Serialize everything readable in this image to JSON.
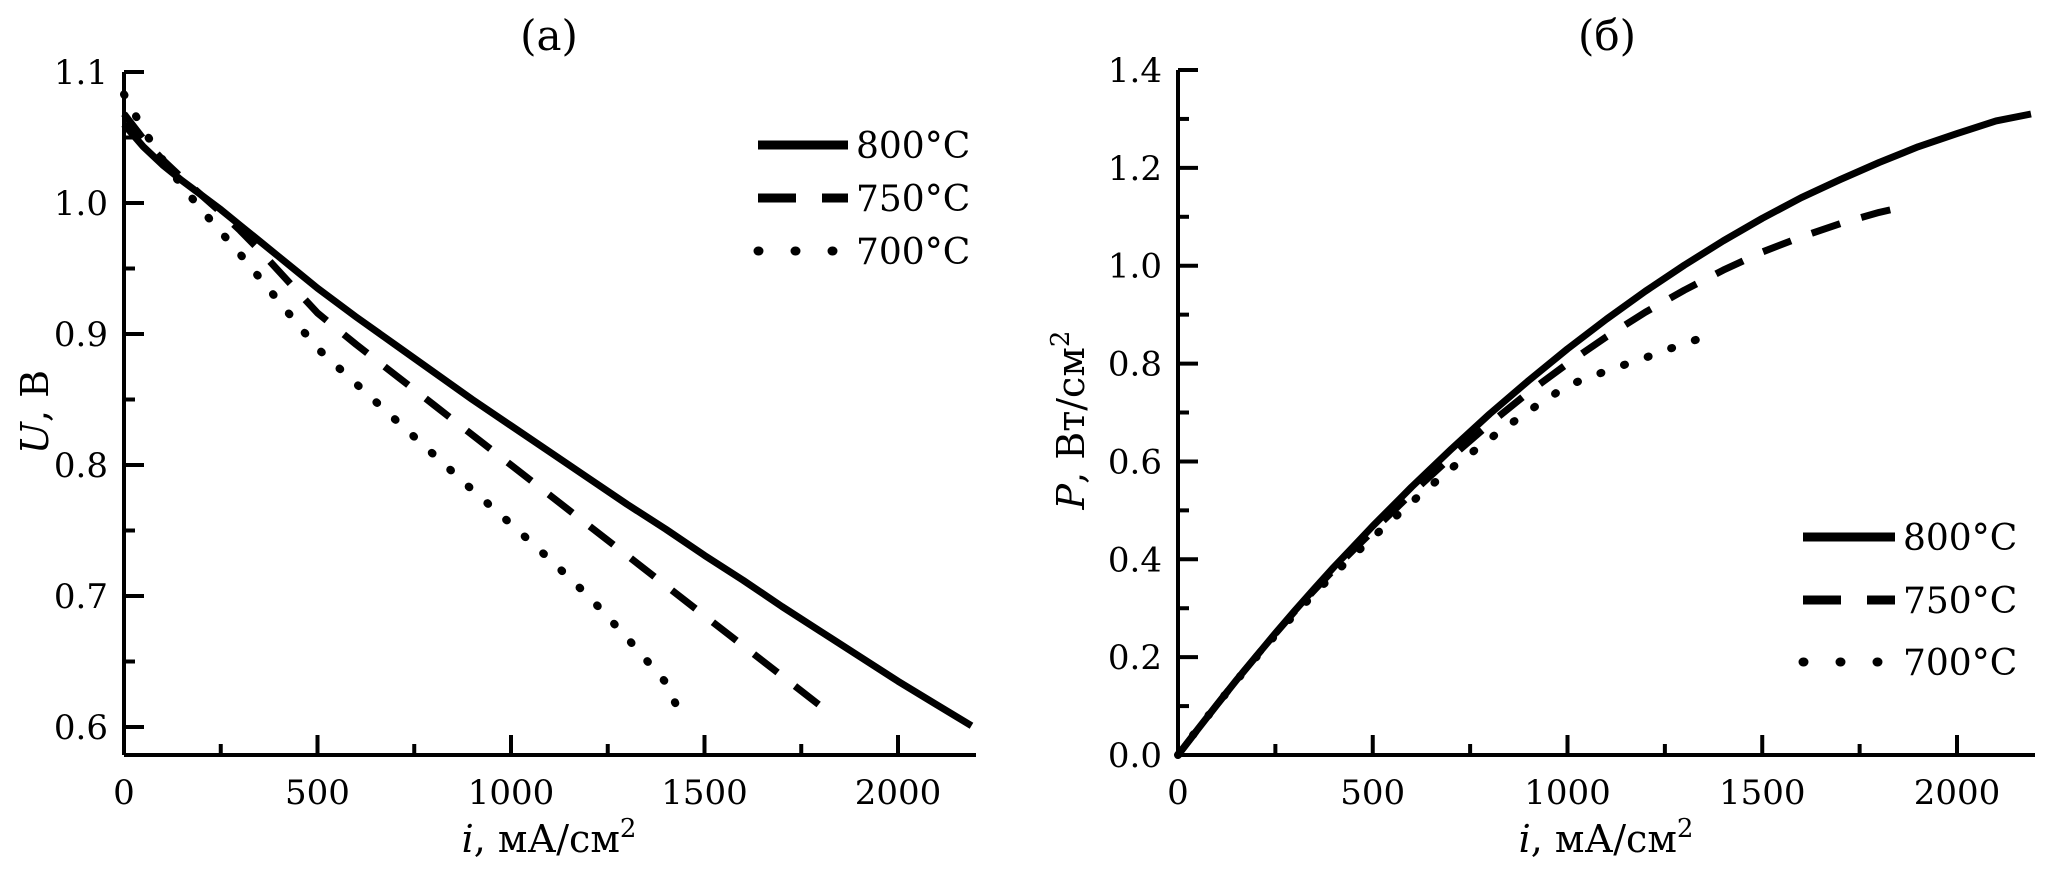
{
  "colors": {
    "foreground": "#000000",
    "background": "#ffffff"
  },
  "chart_data": [
    {
      "panel": "left",
      "type": "line",
      "title": "(а)",
      "xlabel": "i, мА/см²",
      "ylabel": "U, В",
      "xlabel_parts": {
        "var": "i",
        "unit": ", мА/см",
        "sup": "2"
      },
      "ylabel_parts": {
        "var": "U",
        "unit": ", В",
        "sup": ""
      },
      "xlim": [
        0,
        2200
      ],
      "ylim": [
        0.6,
        1.1
      ],
      "grid": false,
      "legend_position": "top-right-inside",
      "xticks": {
        "values": [
          0,
          500,
          1000,
          1500,
          2000
        ],
        "labels": [
          "0",
          "500",
          "1000",
          "1500",
          "2000"
        ],
        "minor": [
          250,
          750,
          1250,
          1750
        ]
      },
      "yticks": {
        "values": [
          1.1,
          1.0,
          0.9,
          0.8,
          0.7,
          0.6
        ],
        "labels": [
          "1.1",
          "1.0",
          "0.9",
          "0.8",
          "0.7",
          "0.6"
        ],
        "minor": [
          1.05,
          0.95,
          0.85,
          0.75,
          0.65
        ]
      },
      "series": [
        {
          "name": "800°C",
          "style": "solid",
          "x": [
            0,
            50,
            100,
            150,
            200,
            250,
            300,
            350,
            400,
            450,
            500,
            600,
            700,
            800,
            900,
            1000,
            1100,
            1200,
            1300,
            1400,
            1500,
            1600,
            1700,
            1800,
            1900,
            2000,
            2100,
            2190
          ],
          "y": [
            1.06,
            1.043,
            1.029,
            1.017,
            1.006,
            0.995,
            0.983,
            0.971,
            0.959,
            0.947,
            0.935,
            0.913,
            0.892,
            0.871,
            0.85,
            0.83,
            0.81,
            0.79,
            0.77,
            0.751,
            0.731,
            0.712,
            0.692,
            0.673,
            0.654,
            0.635,
            0.617,
            0.601
          ]
        },
        {
          "name": "750°C",
          "style": "dashed",
          "x": [
            0,
            50,
            100,
            150,
            200,
            250,
            300,
            350,
            400,
            450,
            500,
            600,
            700,
            800,
            900,
            1000,
            1100,
            1200,
            1300,
            1400,
            1500,
            1600,
            1700,
            1800
          ],
          "y": [
            1.068,
            1.049,
            1.033,
            1.019,
            1.006,
            0.993,
            0.979,
            0.964,
            0.948,
            0.932,
            0.916,
            0.892,
            0.869,
            0.846,
            0.823,
            0.8,
            0.777,
            0.754,
            0.731,
            0.708,
            0.685,
            0.662,
            0.639,
            0.616
          ]
        },
        {
          "name": "700°C",
          "style": "dotted",
          "x": [
            0,
            50,
            100,
            150,
            200,
            250,
            300,
            350,
            400,
            450,
            500,
            600,
            700,
            800,
            900,
            1000,
            1100,
            1200,
            1300,
            1400,
            1450
          ],
          "y": [
            1.083,
            1.056,
            1.033,
            1.013,
            0.995,
            0.978,
            0.961,
            0.943,
            0.925,
            0.907,
            0.889,
            0.862,
            0.835,
            0.808,
            0.781,
            0.755,
            0.728,
            0.7,
            0.668,
            0.634,
            0.602
          ]
        }
      ]
    },
    {
      "panel": "right",
      "type": "line",
      "title": "(б)",
      "xlabel": "i, мА/см²",
      "ylabel": "P, Вт/см²",
      "xlabel_parts": {
        "var": "i",
        "unit": ", мА/см",
        "sup": "2"
      },
      "ylabel_parts": {
        "var": "P",
        "unit": ", Вт/см",
        "sup": "2"
      },
      "xlim": [
        0,
        2200
      ],
      "ylim": [
        0.0,
        1.4
      ],
      "grid": false,
      "legend_position": "bottom-right-inside",
      "xticks": {
        "values": [
          0,
          500,
          1000,
          1500,
          2000
        ],
        "labels": [
          "0",
          "500",
          "1000",
          "1500",
          "2000"
        ],
        "minor": [
          250,
          750,
          1250,
          1750
        ]
      },
      "yticks": {
        "values": [
          1.4,
          1.2,
          1.0,
          0.8,
          0.6,
          0.4,
          0.2,
          0.0
        ],
        "labels": [
          "1.4",
          "1.2",
          "1.0",
          "0.8",
          "0.6",
          "0.4",
          "0.2",
          "0.0"
        ],
        "minor": [
          1.3,
          1.1,
          0.9,
          0.7,
          0.5,
          0.3,
          0.1
        ]
      },
      "series": [
        {
          "name": "800°C",
          "style": "solid",
          "x": [
            0,
            50,
            100,
            150,
            200,
            250,
            300,
            350,
            400,
            450,
            500,
            600,
            700,
            800,
            900,
            1000,
            1100,
            1200,
            1300,
            1400,
            1500,
            1600,
            1700,
            1800,
            1900,
            2000,
            2100,
            2190
          ],
          "y": [
            0.0,
            0.052,
            0.103,
            0.153,
            0.201,
            0.249,
            0.295,
            0.34,
            0.384,
            0.426,
            0.468,
            0.548,
            0.624,
            0.697,
            0.765,
            0.83,
            0.891,
            0.948,
            1.001,
            1.051,
            1.097,
            1.139,
            1.176,
            1.211,
            1.243,
            1.27,
            1.296,
            1.31
          ]
        },
        {
          "name": "750°C",
          "style": "dashed",
          "x": [
            0,
            50,
            100,
            150,
            200,
            250,
            300,
            350,
            400,
            450,
            500,
            600,
            700,
            800,
            900,
            1000,
            1100,
            1200,
            1300,
            1400,
            1500,
            1600,
            1700,
            1800,
            1850
          ],
          "y": [
            0.0,
            0.052,
            0.103,
            0.153,
            0.201,
            0.248,
            0.294,
            0.337,
            0.379,
            0.419,
            0.458,
            0.535,
            0.608,
            0.677,
            0.741,
            0.8,
            0.855,
            0.905,
            0.95,
            0.991,
            1.028,
            1.059,
            1.086,
            1.109,
            1.118
          ]
        },
        {
          "name": "700°C",
          "style": "dotted",
          "x": [
            0,
            50,
            100,
            150,
            200,
            250,
            300,
            350,
            400,
            450,
            500,
            600,
            700,
            800,
            900,
            1000,
            1100,
            1200,
            1300,
            1385
          ],
          "y": [
            0.0,
            0.053,
            0.103,
            0.152,
            0.199,
            0.245,
            0.288,
            0.33,
            0.37,
            0.408,
            0.445,
            0.517,
            0.585,
            0.646,
            0.703,
            0.755,
            0.785,
            0.812,
            0.841,
            0.862
          ]
        }
      ]
    }
  ]
}
